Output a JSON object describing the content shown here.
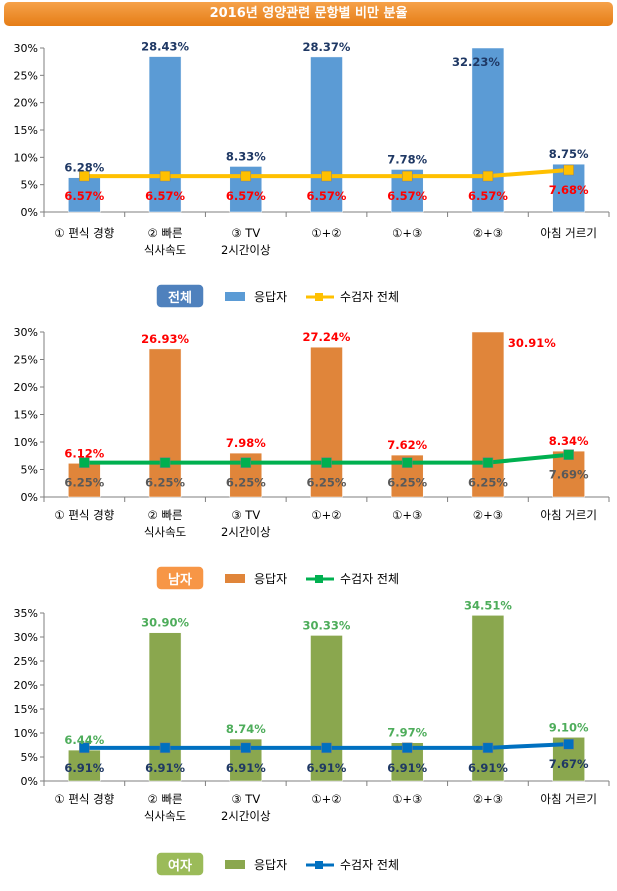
{
  "title": "2016년 영양관련 문항별 비만 분율",
  "chart_data": [
    {
      "type": "bar",
      "badge": "전체",
      "badge_color": "#4f81bd",
      "bar_color": "#5b9bd5",
      "line_color": "#ffc000",
      "marker_color": "#ffc000",
      "bar_label_color": "#1f3864",
      "line_label_color": "#ff0000",
      "series": [
        {
          "name": "응답자",
          "values": [
            6.28,
            28.43,
            8.33,
            28.37,
            7.78,
            32.23,
            8.75
          ],
          "labels": [
            "6.28%",
            "28.43%",
            "8.33%",
            "28.37%",
            "7.78%",
            "32.23%",
            "8.75%"
          ]
        },
        {
          "name": "수검자 전체",
          "values": [
            6.57,
            6.57,
            6.57,
            6.57,
            6.57,
            6.57,
            7.68
          ],
          "labels": [
            "6.57%",
            "6.57%",
            "6.57%",
            "6.57%",
            "6.57%",
            "6.57%",
            "7.68%"
          ]
        }
      ],
      "ylim": [
        0,
        30
      ],
      "yticks": [
        "0%",
        "5%",
        "10%",
        "15%",
        "20%",
        "25%",
        "30%"
      ]
    },
    {
      "type": "bar",
      "badge": "남자",
      "badge_color": "#f79646",
      "bar_color": "#e0853a",
      "line_color": "#00b050",
      "marker_color": "#00b050",
      "bar_label_color": "#ff0000",
      "line_label_color": "#595959",
      "series": [
        {
          "name": "응답자",
          "values": [
            6.12,
            26.93,
            7.98,
            27.24,
            7.62,
            30.91,
            8.34
          ],
          "labels": [
            "6.12%",
            "26.93%",
            "7.98%",
            "27.24%",
            "7.62%",
            "30.91%",
            "8.34%"
          ]
        },
        {
          "name": "수검자 전체",
          "values": [
            6.25,
            6.25,
            6.25,
            6.25,
            6.25,
            6.25,
            7.69
          ],
          "labels": [
            "6.25%",
            "6.25%",
            "6.25%",
            "6.25%",
            "6.25%",
            "6.25%",
            "7.69%"
          ]
        }
      ],
      "ylim": [
        0,
        30
      ],
      "yticks": [
        "0%",
        "5%",
        "10%",
        "15%",
        "20%",
        "25%",
        "30%"
      ]
    },
    {
      "type": "bar",
      "badge": "여자",
      "badge_color": "#9bbb59",
      "bar_color": "#8aa74e",
      "line_color": "#0070c0",
      "marker_color": "#0070c0",
      "bar_label_color": "#4ead5b",
      "line_label_color": "#1f3864",
      "series": [
        {
          "name": "응답자",
          "values": [
            6.44,
            30.9,
            8.74,
            30.33,
            7.97,
            34.51,
            9.1
          ],
          "labels": [
            "6.44%",
            "30.90%",
            "8.74%",
            "30.33%",
            "7.97%",
            "34.51%",
            "9.10%"
          ]
        },
        {
          "name": "수검자 전체",
          "values": [
            6.91,
            6.91,
            6.91,
            6.91,
            6.91,
            6.91,
            7.67
          ],
          "labels": [
            "6.91%",
            "6.91%",
            "6.91%",
            "6.91%",
            "6.91%",
            "6.91%",
            "7.67%"
          ]
        }
      ],
      "ylim": [
        0,
        35
      ],
      "yticks": [
        "0%",
        "5%",
        "10%",
        "15%",
        "20%",
        "25%",
        "30%",
        "35%"
      ]
    }
  ],
  "categories": [
    [
      "① 편식 경향"
    ],
    [
      "② 빠른",
      "식사속도"
    ],
    [
      "③ TV",
      "2시간이상"
    ],
    [
      "①+②"
    ],
    [
      "①+③"
    ],
    [
      "②+③"
    ],
    [
      "아침 거르기"
    ]
  ]
}
